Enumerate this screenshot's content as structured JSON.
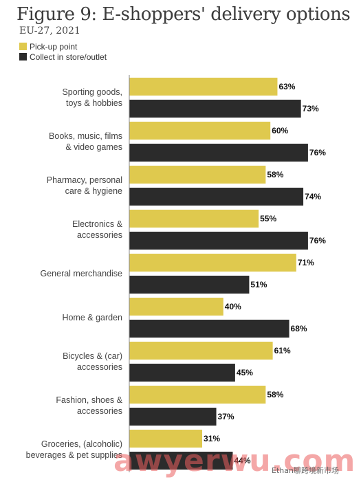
{
  "chart_data": {
    "type": "bar",
    "orientation": "horizontal",
    "title": "Figure 9: E-shoppers' delivery options",
    "subtitle": "EU-27, 2021",
    "categories": [
      "Sporting goods,\ntoys & hobbies",
      "Books, music, films\n& video games",
      "Pharmacy, personal\ncare & hygiene",
      "Electronics &\naccessories",
      "General merchandise",
      "Home & garden",
      "Bicycles & (car)\naccessories",
      "Fashion, shoes &\naccessories",
      "Groceries, (alcoholic)\nbeverages & pet supplies"
    ],
    "series": [
      {
        "name": "Pick-up point",
        "color": "#dfc94e",
        "values": [
          63,
          60,
          58,
          55,
          71,
          40,
          61,
          58,
          31
        ]
      },
      {
        "name": "Collect in store/outlet",
        "color": "#2b2b2b",
        "values": [
          73,
          76,
          74,
          76,
          51,
          68,
          45,
          37,
          44
        ]
      }
    ],
    "value_suffix": "%",
    "xlim": [
      0,
      100
    ],
    "grid": false,
    "legend": "top-left"
  },
  "watermark": {
    "text": "awyerwu.com",
    "sub": "Ethan聊跨境新市场"
  }
}
